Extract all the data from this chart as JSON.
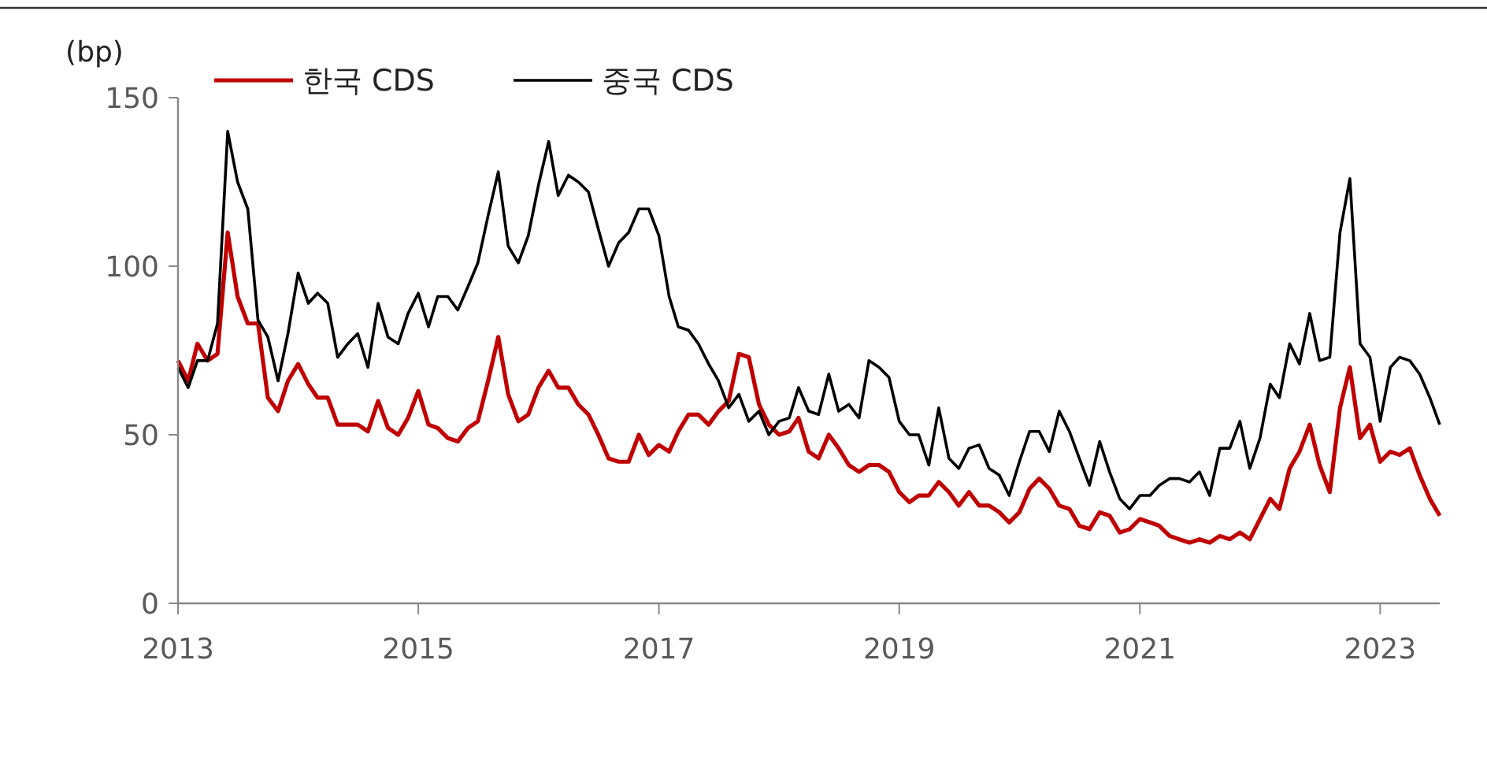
{
  "chart_data": {
    "type": "line",
    "ylabel": "(bp)",
    "legend": "top left",
    "grid": false,
    "line_style": "solid",
    "marker": "none",
    "xlim": [
      "2013-01",
      "2023-07"
    ],
    "xticks": [
      {
        "value": "2013",
        "label": "2013"
      },
      {
        "value": "2015",
        "label": "2015"
      },
      {
        "value": "2017",
        "label": "2017"
      },
      {
        "value": "2019",
        "label": "2019"
      },
      {
        "value": "2021",
        "label": "2021"
      },
      {
        "value": "2023",
        "label": "2023"
      }
    ],
    "ylim": [
      0,
      150
    ],
    "yticks": [
      0,
      50,
      100,
      150
    ],
    "x": [
      "2013-01",
      "2013-02",
      "2013-03",
      "2013-04",
      "2013-05",
      "2013-06",
      "2013-07",
      "2013-08",
      "2013-09",
      "2013-10",
      "2013-11",
      "2013-12",
      "2014-01",
      "2014-02",
      "2014-03",
      "2014-04",
      "2014-05",
      "2014-06",
      "2014-07",
      "2014-08",
      "2014-09",
      "2014-10",
      "2014-11",
      "2014-12",
      "2015-01",
      "2015-02",
      "2015-03",
      "2015-04",
      "2015-05",
      "2015-06",
      "2015-07",
      "2015-08",
      "2015-09",
      "2015-10",
      "2015-11",
      "2015-12",
      "2016-01",
      "2016-02",
      "2016-03",
      "2016-04",
      "2016-05",
      "2016-06",
      "2016-07",
      "2016-08",
      "2016-09",
      "2016-10",
      "2016-11",
      "2016-12",
      "2017-01",
      "2017-02",
      "2017-03",
      "2017-04",
      "2017-05",
      "2017-06",
      "2017-07",
      "2017-08",
      "2017-09",
      "2017-10",
      "2017-11",
      "2017-12",
      "2018-01",
      "2018-02",
      "2018-03",
      "2018-04",
      "2018-05",
      "2018-06",
      "2018-07",
      "2018-08",
      "2018-09",
      "2018-10",
      "2018-11",
      "2018-12",
      "2019-01",
      "2019-02",
      "2019-03",
      "2019-04",
      "2019-05",
      "2019-06",
      "2019-07",
      "2019-08",
      "2019-09",
      "2019-10",
      "2019-11",
      "2019-12",
      "2020-01",
      "2020-02",
      "2020-03",
      "2020-04",
      "2020-05",
      "2020-06",
      "2020-07",
      "2020-08",
      "2020-09",
      "2020-10",
      "2020-11",
      "2020-12",
      "2021-01",
      "2021-02",
      "2021-03",
      "2021-04",
      "2021-05",
      "2021-06",
      "2021-07",
      "2021-08",
      "2021-09",
      "2021-10",
      "2021-11",
      "2021-12",
      "2022-01",
      "2022-02",
      "2022-03",
      "2022-04",
      "2022-05",
      "2022-06",
      "2022-07",
      "2022-08",
      "2022-09",
      "2022-10",
      "2022-11",
      "2022-12",
      "2023-01",
      "2023-02",
      "2023-03",
      "2023-04",
      "2023-05",
      "2023-06",
      "2023-07"
    ],
    "series": [
      {
        "name": "한국 CDS",
        "color": "#c00000",
        "values": [
          72,
          66,
          77,
          72,
          74,
          110,
          91,
          83,
          83,
          61,
          57,
          66,
          71,
          65,
          61,
          61,
          53,
          53,
          53,
          51,
          60,
          52,
          50,
          55,
          63,
          53,
          52,
          49,
          48,
          52,
          54,
          66,
          79,
          62,
          54,
          56,
          64,
          69,
          64,
          64,
          59,
          56,
          50,
          43,
          42,
          42,
          50,
          44,
          47,
          45,
          51,
          56,
          56,
          53,
          57,
          60,
          74,
          73,
          59,
          53,
          50,
          51,
          55,
          45,
          43,
          50,
          46,
          41,
          39,
          41,
          41,
          39,
          33,
          30,
          32,
          32,
          36,
          33,
          29,
          33,
          29,
          29,
          27,
          24,
          27,
          34,
          37,
          34,
          29,
          28,
          23,
          22,
          27,
          26,
          21,
          22,
          25,
          24,
          23,
          20,
          19,
          18,
          19,
          18,
          20,
          19,
          21,
          19,
          25,
          31,
          28,
          40,
          45,
          53,
          41,
          33,
          58,
          70,
          49,
          53,
          42,
          45,
          44,
          46,
          38,
          31,
          26
        ]
      },
      {
        "name": "중국 CDS",
        "color": "#000000",
        "values": [
          70,
          64,
          72,
          72,
          83,
          140,
          125,
          117,
          84,
          79,
          66,
          80,
          98,
          89,
          92,
          89,
          73,
          77,
          80,
          70,
          89,
          79,
          77,
          86,
          92,
          82,
          91,
          91,
          87,
          94,
          101,
          115,
          128,
          106,
          101,
          109,
          124,
          137,
          121,
          127,
          125,
          122,
          111,
          100,
          107,
          110,
          117,
          117,
          109,
          91,
          82,
          81,
          77,
          71,
          66,
          58,
          62,
          54,
          57,
          50,
          54,
          55,
          64,
          57,
          56,
          68,
          57,
          59,
          55,
          72,
          70,
          67,
          54,
          50,
          50,
          41,
          58,
          43,
          40,
          46,
          47,
          40,
          38,
          32,
          42,
          51,
          51,
          45,
          57,
          51,
          43,
          35,
          48,
          39,
          31,
          28,
          32,
          32,
          35,
          37,
          37,
          36,
          39,
          32,
          46,
          46,
          54,
          40,
          49,
          65,
          61,
          77,
          71,
          86,
          72,
          73,
          110,
          126,
          77,
          73,
          54,
          70,
          73,
          72,
          68,
          61,
          53
        ]
      }
    ]
  }
}
